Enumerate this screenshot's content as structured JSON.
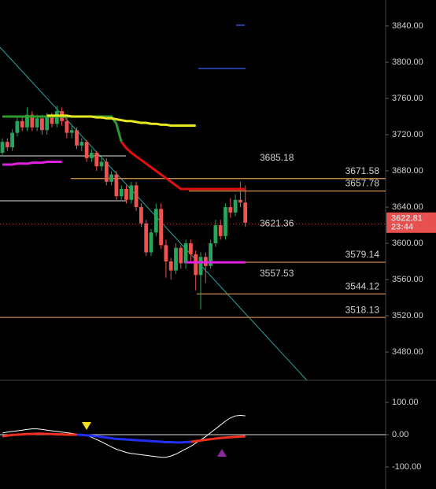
{
  "chart_data": {
    "type": "candlestick",
    "up_color": "#26a65b",
    "down_color": "#ef5350",
    "open": [
      3700,
      3712,
      3706,
      3722,
      3735,
      3728,
      3742,
      3728,
      3738,
      3725,
      3740,
      3732,
      3746,
      3735,
      3722,
      3725,
      3708,
      3712,
      3694,
      3700,
      3685,
      3690,
      3668,
      3676,
      3652,
      3660,
      3648,
      3664,
      3640,
      3622,
      3590,
      3612,
      3638,
      3598,
      3580,
      3570,
      3595,
      3578,
      3600,
      3588,
      3565,
      3585,
      3575,
      3600,
      3620,
      3608,
      3640,
      3634,
      3648,
      3645
    ],
    "high": [
      3716,
      3716,
      3726,
      3740,
      3740,
      3750,
      3746,
      3742,
      3742,
      3744,
      3744,
      3752,
      3750,
      3740,
      3730,
      3728,
      3716,
      3714,
      3704,
      3702,
      3694,
      3694,
      3680,
      3680,
      3664,
      3664,
      3668,
      3668,
      3644,
      3626,
      3616,
      3644,
      3644,
      3604,
      3584,
      3600,
      3598,
      3604,
      3604,
      3592,
      3590,
      3590,
      3604,
      3626,
      3626,
      3644,
      3650,
      3654,
      3668,
      3664
    ],
    "low": [
      3696,
      3702,
      3702,
      3718,
      3724,
      3724,
      3724,
      3724,
      3720,
      3720,
      3728,
      3728,
      3730,
      3716,
      3716,
      3704,
      3702,
      3690,
      3690,
      3680,
      3680,
      3664,
      3664,
      3648,
      3648,
      3644,
      3644,
      3636,
      3618,
      3586,
      3586,
      3608,
      3594,
      3562,
      3560,
      3566,
      3572,
      3572,
      3580,
      3548,
      3527,
      3556,
      3572,
      3596,
      3604,
      3604,
      3628,
      3630,
      3640,
      3618
    ],
    "close": [
      3712,
      3706,
      3722,
      3735,
      3728,
      3742,
      3728,
      3738,
      3725,
      3740,
      3732,
      3746,
      3735,
      3722,
      3725,
      3708,
      3712,
      3694,
      3700,
      3685,
      3690,
      3668,
      3676,
      3652,
      3660,
      3648,
      3664,
      3640,
      3622,
      3590,
      3612,
      3638,
      3598,
      3580,
      3570,
      3595,
      3578,
      3600,
      3588,
      3565,
      3585,
      3575,
      3600,
      3620,
      3608,
      3640,
      3634,
      3648,
      3645,
      3622.81
    ],
    "countdown": "23:44",
    "ylim": [
      3448.7,
      3868.7
    ],
    "yticks": [
      {
        "value": 3840,
        "label": "3840.00"
      },
      {
        "value": 3800,
        "label": "3800.00"
      },
      {
        "value": 3760,
        "label": "3760.00"
      },
      {
        "value": 3720,
        "label": "3720.00"
      },
      {
        "value": 3680,
        "label": "3680.00"
      },
      {
        "value": 3640,
        "label": "3640.00"
      },
      {
        "value": 3600,
        "label": "3600.00"
      },
      {
        "value": 3560,
        "label": "3560.00"
      },
      {
        "value": 3520,
        "label": "3520.00"
      },
      {
        "value": 3480,
        "label": "3480.00"
      }
    ],
    "overlays": [
      {
        "color": "#2e9a2e",
        "values": [
          3740,
          3740,
          3740,
          3740,
          3740,
          3740,
          3740,
          3740,
          3740,
          3740,
          3740,
          3740,
          3740,
          3740,
          3740,
          3740,
          3740,
          3740,
          3740,
          3740,
          3740,
          3740,
          3740,
          3732,
          3712,
          null,
          null,
          null,
          null,
          null,
          null,
          null,
          null,
          null,
          null,
          null,
          null,
          null,
          null,
          null,
          null,
          null,
          null,
          null,
          null,
          null,
          null,
          null,
          null,
          null
        ]
      },
      {
        "color": "#e01010",
        "values": [
          null,
          null,
          null,
          null,
          null,
          null,
          null,
          null,
          null,
          null,
          null,
          null,
          null,
          null,
          null,
          null,
          null,
          null,
          null,
          null,
          null,
          null,
          null,
          null,
          3712,
          3705,
          3700,
          3696,
          3692,
          3688,
          3684,
          3680,
          3676,
          3672,
          3668,
          3664,
          3660,
          3660,
          3660,
          3660,
          3660,
          3660,
          3660,
          3660,
          3660,
          3660,
          3660,
          3660,
          3660,
          3660
        ]
      },
      {
        "color": "#e8e820",
        "values": [
          null,
          null,
          null,
          null,
          null,
          null,
          null,
          null,
          null,
          3741,
          3741,
          3741,
          3741,
          3741,
          3740,
          3740,
          3740,
          3740,
          3740,
          3739,
          3739,
          3738,
          3738,
          3737,
          3736,
          3735,
          3735,
          3734,
          3733,
          3733,
          3732,
          3732,
          3731,
          3731,
          3730,
          3730,
          3730,
          3730,
          3730,
          3730,
          null,
          null,
          null,
          null,
          null,
          null,
          null,
          null,
          null,
          null
        ]
      },
      {
        "color": "#e020e0",
        "values": [
          3687,
          3687,
          3687,
          3688,
          3688,
          3688,
          3689,
          3689,
          3689,
          3690,
          3690,
          3690,
          3690,
          null,
          null,
          null,
          null,
          null,
          null,
          null,
          null,
          null,
          null,
          null,
          null,
          null,
          null,
          null,
          null,
          null,
          null,
          null,
          null,
          null,
          null,
          null,
          null,
          3579,
          3579,
          3579,
          3579,
          3579,
          3579,
          3579,
          3579,
          3579,
          3579,
          3579,
          3579,
          3579
        ]
      }
    ],
    "levels": [
      {
        "value": 3671.58,
        "color": "#c8874a"
      },
      {
        "value": 3657.78,
        "color": "#c8874a"
      },
      {
        "value": 3579.14,
        "color": "#c8874a"
      },
      {
        "value": 3544.12,
        "color": "#c8874a"
      },
      {
        "value": 3518.13,
        "color": "#c8874a"
      }
    ],
    "annotations": [
      {
        "value": 3685.18,
        "color": "#f0e040"
      },
      {
        "value": 3621.36,
        "color": "#e04848"
      },
      {
        "value": 3557.53,
        "color": "#c070d0"
      }
    ],
    "indicator": {
      "ylim": [
        -168,
        168
      ],
      "yticks": [
        {
          "value": 100,
          "label": "100.00"
        },
        {
          "value": 0,
          "label": "0.00"
        },
        {
          "value": -100,
          "label": "-100.00"
        }
      ],
      "series": [
        {
          "color": "#ffffff",
          "values": [
            5,
            8,
            10,
            12,
            14,
            16,
            18,
            18,
            16,
            14,
            12,
            10,
            8,
            6,
            4,
            2,
            0,
            -2,
            -8,
            -15,
            -22,
            -30,
            -38,
            -45,
            -50,
            -55,
            -58,
            -60,
            -62,
            -64,
            -66,
            -68,
            -70,
            -70,
            -66,
            -60,
            -52,
            -44,
            -36,
            -26,
            -16,
            -6,
            6,
            18,
            30,
            42,
            52,
            58,
            60,
            58
          ]
        },
        {
          "color": "#f03020",
          "values": [
            -5,
            -3,
            -1,
            0,
            1,
            2,
            2,
            3,
            3,
            2,
            2,
            1,
            1,
            0,
            0,
            0,
            null,
            null,
            null,
            null,
            null,
            null,
            null,
            null,
            null,
            null,
            null,
            null,
            null,
            null,
            null,
            null,
            null,
            null,
            null,
            null,
            null,
            null,
            -22,
            -20,
            -18,
            -16,
            -14,
            -12,
            -10,
            -9,
            -8,
            -7,
            -6,
            -5
          ]
        },
        {
          "color": "#2030f0",
          "values": [
            null,
            null,
            null,
            null,
            null,
            null,
            null,
            null,
            null,
            null,
            null,
            null,
            null,
            null,
            null,
            0,
            -1,
            -2,
            -3,
            -5,
            -7,
            -9,
            -11,
            -13,
            -14,
            -15,
            -16,
            -17,
            -18,
            -19,
            -20,
            -21,
            -22,
            -23,
            -23,
            -24,
            -24,
            -23,
            -22,
            null,
            null,
            null,
            null,
            null,
            null,
            null,
            null,
            null,
            null,
            null
          ]
        }
      ]
    }
  }
}
